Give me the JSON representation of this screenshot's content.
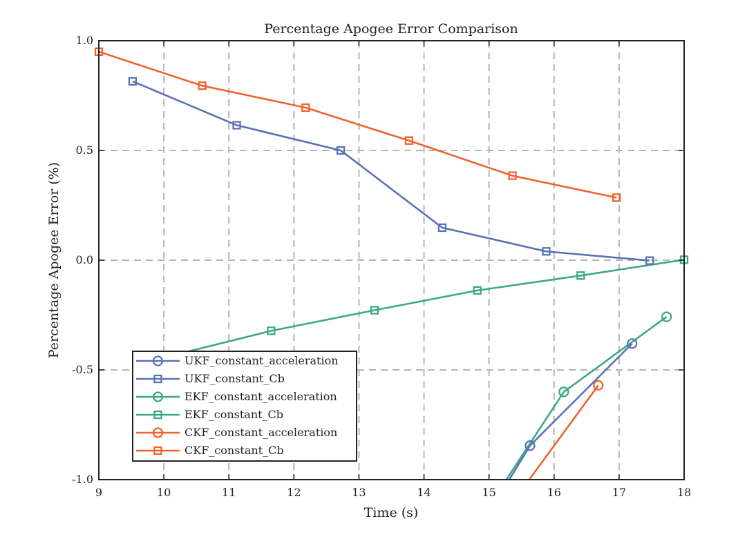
{
  "chart_data": {
    "type": "line",
    "title": "Percentage Apogee Error Comparison",
    "xlabel": "Time (s)",
    "ylabel": "Percentage Apogee Error (%)",
    "xlim": [
      9,
      18
    ],
    "ylim": [
      -1.0,
      1.0
    ],
    "xticks": [
      9,
      10,
      11,
      12,
      13,
      14,
      15,
      16,
      17,
      18
    ],
    "xtick_labels": [
      "9",
      "10",
      "11",
      "12",
      "13",
      "14",
      "15",
      "16",
      "17",
      "18"
    ],
    "yticks": [
      -1.0,
      -0.5,
      0.0,
      0.5,
      1.0
    ],
    "ytick_labels": [
      "-1.0",
      "-0.5",
      "0.0",
      "0.5",
      "1.0"
    ],
    "grid": true,
    "legend_position": "bottom-left",
    "series": [
      {
        "name": "UKF_constant_acceleration",
        "color": "#5a72b5",
        "marker": "circle",
        "x": [
          15.0,
          15.63,
          17.2
        ],
        "y": [
          -1.15,
          -0.845,
          -0.38
        ]
      },
      {
        "name": "UKF_constant_Cb",
        "color": "#5a72b5",
        "marker": "square",
        "x": [
          9.52,
          11.12,
          12.72,
          14.28,
          15.88,
          17.47
        ],
        "y": [
          0.815,
          0.615,
          0.5,
          0.148,
          0.04,
          -0.002
        ]
      },
      {
        "name": "EKF_constant_acceleration",
        "color": "#3ba886",
        "marker": "circle",
        "x": [
          15.0,
          16.15,
          17.73
        ],
        "y": [
          -1.12,
          -0.6,
          -0.258
        ]
      },
      {
        "name": "EKF_constant_Cb",
        "color": "#3ba886",
        "marker": "square",
        "x": [
          10.05,
          11.65,
          13.24,
          14.82,
          16.41,
          18.0
        ],
        "y": [
          -0.44,
          -0.322,
          -0.228,
          -0.138,
          -0.07,
          0.002
        ]
      },
      {
        "name": "CKF_constant_acceleration",
        "color": "#f0622d",
        "marker": "circle",
        "x": [
          15.0,
          16.68
        ],
        "y": [
          -1.25,
          -0.57
        ]
      },
      {
        "name": "CKF_constant_Cb",
        "color": "#f0622d",
        "marker": "square",
        "x": [
          9.0,
          10.59,
          12.18,
          13.77,
          15.36,
          16.96
        ],
        "y": [
          0.95,
          0.795,
          0.695,
          0.545,
          0.385,
          0.285
        ]
      }
    ]
  }
}
